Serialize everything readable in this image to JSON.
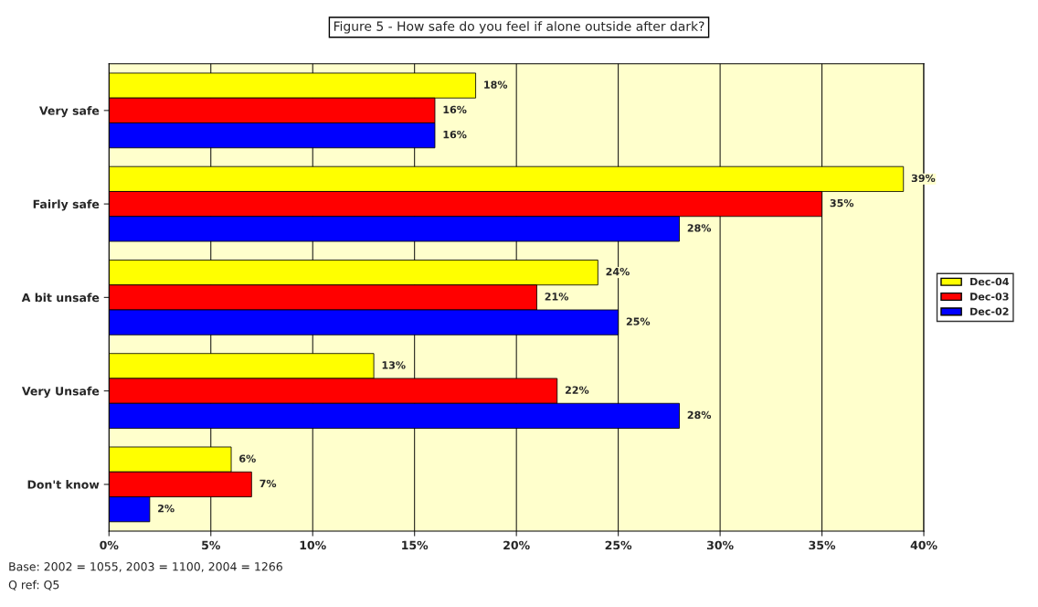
{
  "chart_data": {
    "type": "bar",
    "orientation": "horizontal",
    "title": "Figure 5 - How safe do you feel if alone outside after dark?",
    "categories": [
      "Very safe",
      "Fairly safe",
      "A bit unsafe",
      "Very Unsafe",
      "Don't know"
    ],
    "series": [
      {
        "name": "Dec-04",
        "color": "#ffff00",
        "values": [
          18,
          39,
          24,
          13,
          6
        ],
        "value_labels": [
          "18%",
          "39%",
          "24%",
          "13%",
          "6%"
        ]
      },
      {
        "name": "Dec-03",
        "color": "#ff0000",
        "values": [
          16,
          35,
          21,
          22,
          7
        ],
        "value_labels": [
          "16%",
          "35%",
          "21%",
          "22%",
          "7%"
        ]
      },
      {
        "name": "Dec-02",
        "color": "#0000ff",
        "values": [
          16,
          28,
          25,
          28,
          2
        ],
        "value_labels": [
          "16%",
          "28%",
          "25%",
          "28%",
          "2%"
        ]
      }
    ],
    "xlim": [
      0,
      40
    ],
    "xticks": [
      {
        "value": 0,
        "label": "0%"
      },
      {
        "value": 5,
        "label": "5%"
      },
      {
        "value": 10,
        "label": "10%"
      },
      {
        "value": 15,
        "label": "15%"
      },
      {
        "value": 20,
        "label": "20%"
      },
      {
        "value": 25,
        "label": "25%"
      },
      {
        "value": 30,
        "label": "30%"
      },
      {
        "value": 35,
        "label": "35%"
      },
      {
        "value": 40,
        "label": "40%"
      }
    ],
    "grid": "x",
    "legend": "right",
    "annotations": [
      "Base: 2002 = 1055, 2003 = 1100, 2004 = 1266",
      "Q ref: Q5"
    ]
  }
}
